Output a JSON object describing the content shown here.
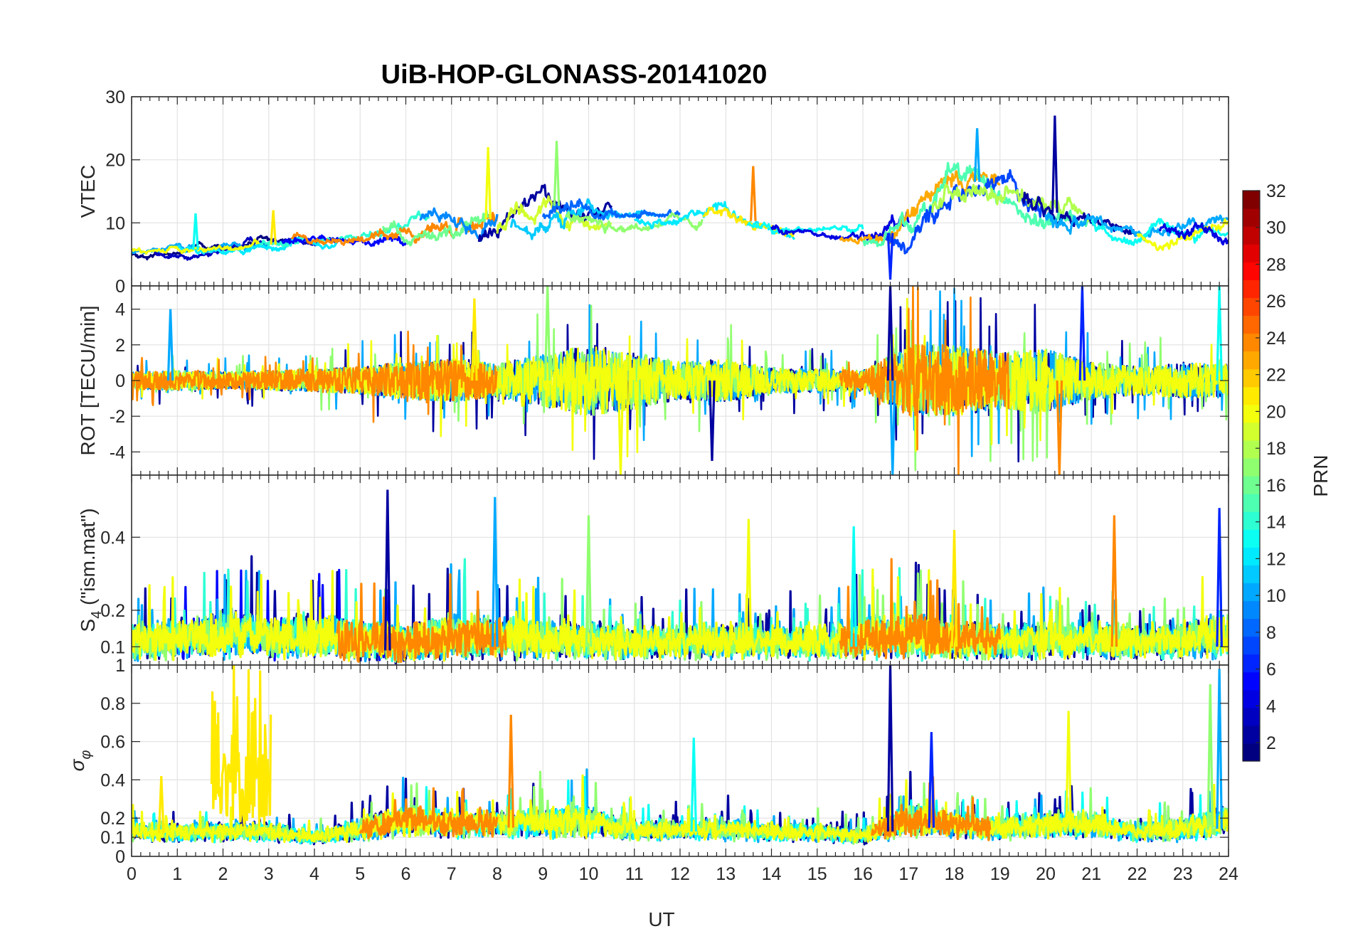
{
  "figure": {
    "title": "UiB-HOP-GLONASS-20141020",
    "xlabel": "UT",
    "colorbar_label": "PRN"
  },
  "chart_data": [
    {
      "type": "line",
      "panel": "vtec",
      "title": "UiB-HOP-GLONASS-20141020",
      "xlabel": "UT",
      "ylabel": "VTEC",
      "xlim": [
        0,
        24
      ],
      "ylim": [
        0,
        30
      ],
      "xticks": [
        "0",
        "1",
        "2",
        "3",
        "4",
        "5",
        "6",
        "7",
        "8",
        "9",
        "10",
        "11",
        "12",
        "13",
        "14",
        "15",
        "16",
        "17",
        "18",
        "19",
        "20",
        "21",
        "22",
        "23",
        "24"
      ],
      "yticks": [
        {
          "v": 0,
          "t": "0"
        },
        {
          "v": 10,
          "t": "10"
        },
        {
          "v": 20,
          "t": "20"
        },
        {
          "v": 30,
          "t": "30"
        }
      ],
      "grid": true,
      "envelope": {
        "x": [
          0,
          1,
          2,
          3,
          4,
          5,
          6,
          7,
          8,
          9,
          10,
          11,
          12,
          13,
          14,
          15,
          16,
          17,
          18,
          19,
          20,
          21,
          22,
          23,
          24
        ],
        "base": [
          5,
          5.5,
          6,
          6.5,
          7,
          7.5,
          8.5,
          9,
          11,
          13,
          12,
          11,
          11.5,
          11.5,
          9.5,
          8,
          7.5,
          9,
          17,
          16,
          12,
          10,
          8,
          8,
          9
        ],
        "amp": [
          1.5,
          1.5,
          1.5,
          2,
          1.5,
          2,
          3,
          4,
          5,
          4,
          4,
          2,
          2,
          3,
          2,
          1.5,
          2,
          5,
          5,
          5,
          5,
          3,
          2.5,
          3,
          3
        ]
      },
      "peaks": [
        {
          "x": 20.2,
          "y": 27
        },
        {
          "x": 18.5,
          "y": 25
        },
        {
          "x": 9.3,
          "y": 23
        },
        {
          "x": 7.8,
          "y": 22
        },
        {
          "x": 13.6,
          "y": 19
        },
        {
          "x": 16.6,
          "y": 1
        },
        {
          "x": 1.4,
          "y": 11.5
        },
        {
          "x": 3.1,
          "y": 12
        }
      ],
      "series": [
        {
          "prn": 1,
          "t0": 0,
          "t1": 3.6
        },
        {
          "prn": 3,
          "t0": 0.5,
          "t1": 4.5
        },
        {
          "prn": 10,
          "t0": 0,
          "t1": 3
        },
        {
          "prn": 12,
          "t0": 1,
          "t1": 4.5
        },
        {
          "prn": 20,
          "t0": 0,
          "t1": 2.8
        },
        {
          "prn": 14,
          "t0": 2.8,
          "t1": 6.5
        },
        {
          "prn": 5,
          "t0": 3.3,
          "t1": 6
        },
        {
          "prn": 24,
          "t0": 3.5,
          "t1": 8
        },
        {
          "prn": 16,
          "t0": 5.5,
          "t1": 7.8
        },
        {
          "prn": 9,
          "t0": 6.3,
          "t1": 8
        },
        {
          "prn": 2,
          "t0": 7.6,
          "t1": 10.5
        },
        {
          "prn": 19,
          "t0": 8,
          "t1": 10.5
        },
        {
          "prn": 11,
          "t0": 8.3,
          "t1": 11.5
        },
        {
          "prn": 8,
          "t0": 9,
          "t1": 12
        },
        {
          "prn": 17,
          "t0": 9.5,
          "t1": 12.5
        },
        {
          "prn": 12,
          "t0": 11,
          "t1": 14.5
        },
        {
          "prn": 21,
          "t0": 12.5,
          "t1": 14.5
        },
        {
          "prn": 13,
          "t0": 13.5,
          "t1": 16
        },
        {
          "prn": 4,
          "t0": 14,
          "t1": 17
        },
        {
          "prn": 23,
          "t0": 15.5,
          "t1": 19
        },
        {
          "prn": 15,
          "t0": 16,
          "t1": 21
        },
        {
          "prn": 7,
          "t0": 16.5,
          "t1": 20
        },
        {
          "prn": 18,
          "t0": 17.5,
          "t1": 21
        },
        {
          "prn": 2,
          "t0": 19.5,
          "t1": 22
        },
        {
          "prn": 10,
          "t0": 20,
          "t1": 24
        },
        {
          "prn": 13,
          "t0": 21,
          "t1": 24
        },
        {
          "prn": 20,
          "t0": 22,
          "t1": 24
        },
        {
          "prn": 4,
          "t0": 22.5,
          "t1": 24
        }
      ]
    },
    {
      "type": "line",
      "panel": "rot",
      "xlabel": "",
      "ylabel": "ROT [TECU/min]",
      "xlim": [
        0,
        24
      ],
      "ylim": [
        -5.3,
        5.3
      ],
      "xticks": [
        "0",
        "1",
        "2",
        "3",
        "4",
        "5",
        "6",
        "7",
        "8",
        "9",
        "10",
        "11",
        "12",
        "13",
        "14",
        "15",
        "16",
        "17",
        "18",
        "19",
        "20",
        "21",
        "22",
        "23",
        "24"
      ],
      "yticks": [
        {
          "v": -4,
          "t": "-4"
        },
        {
          "v": -2,
          "t": "-2"
        },
        {
          "v": 0,
          "t": "0"
        },
        {
          "v": 2,
          "t": "2"
        },
        {
          "v": 4,
          "t": "4"
        }
      ],
      "grid": true,
      "envelope": {
        "x": [
          0,
          1,
          2,
          3,
          4,
          5,
          6,
          7,
          8,
          9,
          10,
          11,
          12,
          13,
          14,
          15,
          16,
          17,
          18,
          19,
          20,
          21,
          22,
          23,
          24
        ],
        "base": [
          0,
          0,
          0,
          0,
          0,
          0,
          0,
          0,
          0,
          0,
          0,
          0,
          0,
          0,
          0,
          0,
          0,
          0,
          0,
          0,
          0,
          0,
          0,
          0,
          0
        ],
        "amp": [
          0.6,
          0.7,
          0.6,
          0.7,
          0.8,
          1.0,
          1.3,
          1.5,
          1.2,
          1.8,
          2.5,
          2.0,
          1.3,
          1.5,
          0.9,
          0.8,
          0.7,
          2.5,
          2.5,
          2.0,
          2.2,
          1.3,
          1.0,
          1.2,
          1.2
        ]
      },
      "peaks": [
        {
          "x": 16.6,
          "y": 5.3
        },
        {
          "x": 16.65,
          "y": -5.3
        },
        {
          "x": 9.1,
          "y": 5.3
        },
        {
          "x": 10.7,
          "y": -5.3
        },
        {
          "x": 20.3,
          "y": -5.3
        },
        {
          "x": 20.8,
          "y": 5.3
        },
        {
          "x": 23.8,
          "y": 5.3
        },
        {
          "x": 7.5,
          "y": 4.6
        },
        {
          "x": 12.7,
          "y": -4.5
        },
        {
          "x": 0.85,
          "y": 4
        }
      ],
      "series": [
        {
          "prn": 2,
          "t0": 0,
          "t1": 24
        },
        {
          "prn": 10,
          "t0": 0,
          "t1": 24
        },
        {
          "prn": 17,
          "t0": 0,
          "t1": 24
        },
        {
          "prn": 20,
          "t0": 0,
          "t1": 24
        },
        {
          "prn": 24,
          "t0": 0,
          "t1": 8
        },
        {
          "prn": 24,
          "t0": 15.5,
          "t1": 19.2
        }
      ]
    },
    {
      "type": "line",
      "panel": "s4",
      "xlabel": "",
      "ylabel": "S4 (\"ism.mat\")",
      "xlim": [
        0,
        24
      ],
      "ylim": [
        0.05,
        0.57
      ],
      "xticks": [
        "0",
        "1",
        "2",
        "3",
        "4",
        "5",
        "6",
        "7",
        "8",
        "9",
        "10",
        "11",
        "12",
        "13",
        "14",
        "15",
        "16",
        "17",
        "18",
        "19",
        "20",
        "21",
        "22",
        "23",
        "24"
      ],
      "yticks": [
        {
          "v": 0.1,
          "t": "0.1"
        },
        {
          "v": 0.2,
          "t": "0.2"
        },
        {
          "v": 0.4,
          "t": "0.4"
        }
      ],
      "grid": true,
      "envelope": {
        "x": [
          0,
          1,
          2,
          3,
          4,
          5,
          6,
          7,
          8,
          9,
          10,
          11,
          12,
          13,
          14,
          15,
          16,
          17,
          18,
          19,
          20,
          21,
          22,
          23,
          24
        ],
        "base": [
          0.1,
          0.1,
          0.1,
          0.1,
          0.1,
          0.09,
          0.09,
          0.1,
          0.1,
          0.1,
          0.1,
          0.1,
          0.1,
          0.1,
          0.1,
          0.1,
          0.1,
          0.1,
          0.1,
          0.1,
          0.1,
          0.1,
          0.1,
          0.1,
          0.1
        ],
        "amp": [
          0.12,
          0.12,
          0.18,
          0.15,
          0.15,
          0.15,
          0.12,
          0.15,
          0.15,
          0.12,
          0.12,
          0.1,
          0.1,
          0.12,
          0.1,
          0.1,
          0.15,
          0.15,
          0.13,
          0.1,
          0.12,
          0.12,
          0.1,
          0.12,
          0.18
        ]
      },
      "peaks": [
        {
          "x": 5.6,
          "y": 0.53
        },
        {
          "x": 7.95,
          "y": 0.51
        },
        {
          "x": 10.0,
          "y": 0.46
        },
        {
          "x": 13.5,
          "y": 0.45
        },
        {
          "x": 21.5,
          "y": 0.46
        },
        {
          "x": 23.8,
          "y": 0.48
        },
        {
          "x": 15.8,
          "y": 0.43
        },
        {
          "x": 18.0,
          "y": 0.42
        }
      ],
      "series": [
        {
          "prn": 2,
          "t0": 0,
          "t1": 24
        },
        {
          "prn": 5,
          "t0": 1,
          "t1": 6
        },
        {
          "prn": 10,
          "t0": 0,
          "t1": 24
        },
        {
          "prn": 14,
          "t0": 0,
          "t1": 24
        },
        {
          "prn": 17,
          "t0": 0,
          "t1": 24
        },
        {
          "prn": 20,
          "t0": 0,
          "t1": 24
        },
        {
          "prn": 24,
          "t0": 4.5,
          "t1": 8.2
        },
        {
          "prn": 24,
          "t0": 15.5,
          "t1": 19
        }
      ]
    },
    {
      "type": "line",
      "panel": "sigma_phi",
      "xlabel": "UT",
      "ylabel": "σφ",
      "xlim": [
        0,
        24
      ],
      "ylim": [
        0,
        1
      ],
      "xticks": [
        "0",
        "1",
        "2",
        "3",
        "4",
        "5",
        "6",
        "7",
        "8",
        "9",
        "10",
        "11",
        "12",
        "13",
        "14",
        "15",
        "16",
        "17",
        "18",
        "19",
        "20",
        "21",
        "22",
        "23",
        "24"
      ],
      "yticks": [
        {
          "v": 0,
          "t": "0"
        },
        {
          "v": 0.1,
          "t": "0.1"
        },
        {
          "v": 0.2,
          "t": "0.2"
        },
        {
          "v": 0.4,
          "t": "0.4"
        },
        {
          "v": 0.6,
          "t": "0.6"
        },
        {
          "v": 0.8,
          "t": "0.8"
        },
        {
          "v": 1,
          "t": "1"
        }
      ],
      "grid": true,
      "envelope": {
        "x": [
          0,
          1,
          2,
          3,
          4,
          5,
          6,
          7,
          8,
          9,
          10,
          11,
          12,
          13,
          14,
          15,
          16,
          17,
          18,
          19,
          20,
          21,
          22,
          23,
          24
        ],
        "base": [
          0.12,
          0.12,
          0.12,
          0.12,
          0.1,
          0.12,
          0.15,
          0.15,
          0.15,
          0.15,
          0.15,
          0.13,
          0.13,
          0.13,
          0.12,
          0.12,
          0.1,
          0.15,
          0.15,
          0.13,
          0.15,
          0.15,
          0.12,
          0.12,
          0.15
        ],
        "amp": [
          0.1,
          0.08,
          0.1,
          0.1,
          0.05,
          0.15,
          0.2,
          0.15,
          0.15,
          0.2,
          0.2,
          0.1,
          0.1,
          0.12,
          0.08,
          0.08,
          0.08,
          0.2,
          0.15,
          0.12,
          0.15,
          0.15,
          0.08,
          0.15,
          0.2
        ]
      },
      "peaks": [
        {
          "x": 16.6,
          "y": 1.0
        },
        {
          "x": 23.8,
          "y": 0.98
        },
        {
          "x": 23.6,
          "y": 0.9
        },
        {
          "x": 20.5,
          "y": 0.76
        },
        {
          "x": 8.3,
          "y": 0.74
        },
        {
          "x": 17.5,
          "y": 0.65
        },
        {
          "x": 12.3,
          "y": 0.62
        },
        {
          "x": 0.65,
          "y": 0.42
        }
      ],
      "burst": {
        "prn": 21,
        "t0": 1.75,
        "t1": 3.05,
        "ymax": 1.0
      },
      "series": [
        {
          "prn": 2,
          "t0": 0,
          "t1": 24
        },
        {
          "prn": 10,
          "t0": 0,
          "t1": 24
        },
        {
          "prn": 13,
          "t0": 0,
          "t1": 24
        },
        {
          "prn": 17,
          "t0": 0,
          "t1": 24
        },
        {
          "prn": 20,
          "t0": 0,
          "t1": 24
        },
        {
          "prn": 24,
          "t0": 5,
          "t1": 8
        },
        {
          "prn": 24,
          "t0": 16.2,
          "t1": 18.8
        }
      ]
    },
    {
      "type": "heatmap",
      "panel": "colorbar",
      "label": "PRN",
      "range": [
        1,
        32
      ],
      "ticks": [
        {
          "v": 2,
          "t": "2"
        },
        {
          "v": 4,
          "t": "4"
        },
        {
          "v": 6,
          "t": "6"
        },
        {
          "v": 8,
          "t": "8"
        },
        {
          "v": 10,
          "t": "10"
        },
        {
          "v": 12,
          "t": "12"
        },
        {
          "v": 14,
          "t": "14"
        },
        {
          "v": 16,
          "t": "16"
        },
        {
          "v": 18,
          "t": "18"
        },
        {
          "v": 20,
          "t": "20"
        },
        {
          "v": 22,
          "t": "22"
        },
        {
          "v": 24,
          "t": "24"
        },
        {
          "v": 26,
          "t": "26"
        },
        {
          "v": 28,
          "t": "28"
        },
        {
          "v": 30,
          "t": "30"
        },
        {
          "v": 32,
          "t": "32"
        }
      ],
      "colormap": "jet"
    }
  ]
}
